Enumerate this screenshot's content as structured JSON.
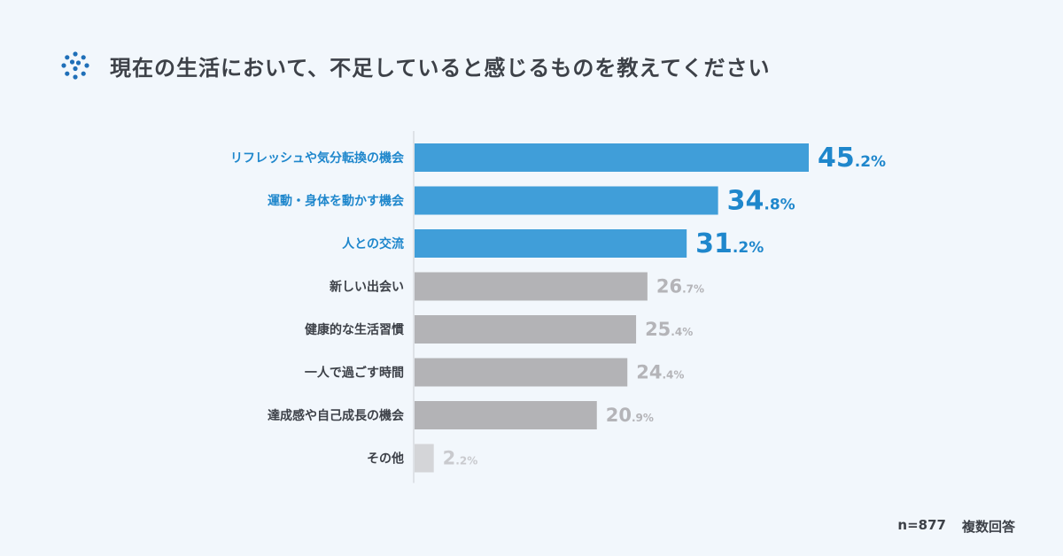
{
  "title": "現在の生活において、不足していると感じるものを教えてください",
  "footnote": {
    "n": "n=877",
    "note": "複数回答"
  },
  "colors": {
    "highlight": "#409ed9",
    "highlight_text": "#1f87cc",
    "bar": "#b3b3b6",
    "value_text": "#b4b4b8",
    "other_bar": "#d4d5d8",
    "other_text": "#c9cace",
    "label": "#3d4148",
    "title_icon": "#1f6fb8"
  },
  "chart_data": {
    "type": "bar",
    "orientation": "horizontal",
    "title": "現在の生活において、不足していると感じるものを教えてください",
    "categories": [
      "リフレッシュや気分転換の機会",
      "運動・身体を動かす機会",
      "人との交流",
      "新しい出会い",
      "健康的な生活習慣",
      "一人で過ごす時間",
      "達成感や自己成長の機会",
      "その他"
    ],
    "values": [
      45.2,
      34.8,
      31.2,
      26.7,
      25.4,
      24.4,
      20.9,
      2.2
    ],
    "value_int": [
      "45",
      "34",
      "31",
      "26",
      "25",
      "24",
      "20",
      "2"
    ],
    "value_dec": [
      ".2%",
      ".8%",
      ".2%",
      ".7%",
      ".4%",
      ".4%",
      ".9%",
      ".2%"
    ],
    "highlighted": [
      true,
      true,
      true,
      false,
      false,
      false,
      false,
      false
    ],
    "xlim": [
      0,
      45.2
    ],
    "grid": false,
    "legend": "none"
  }
}
